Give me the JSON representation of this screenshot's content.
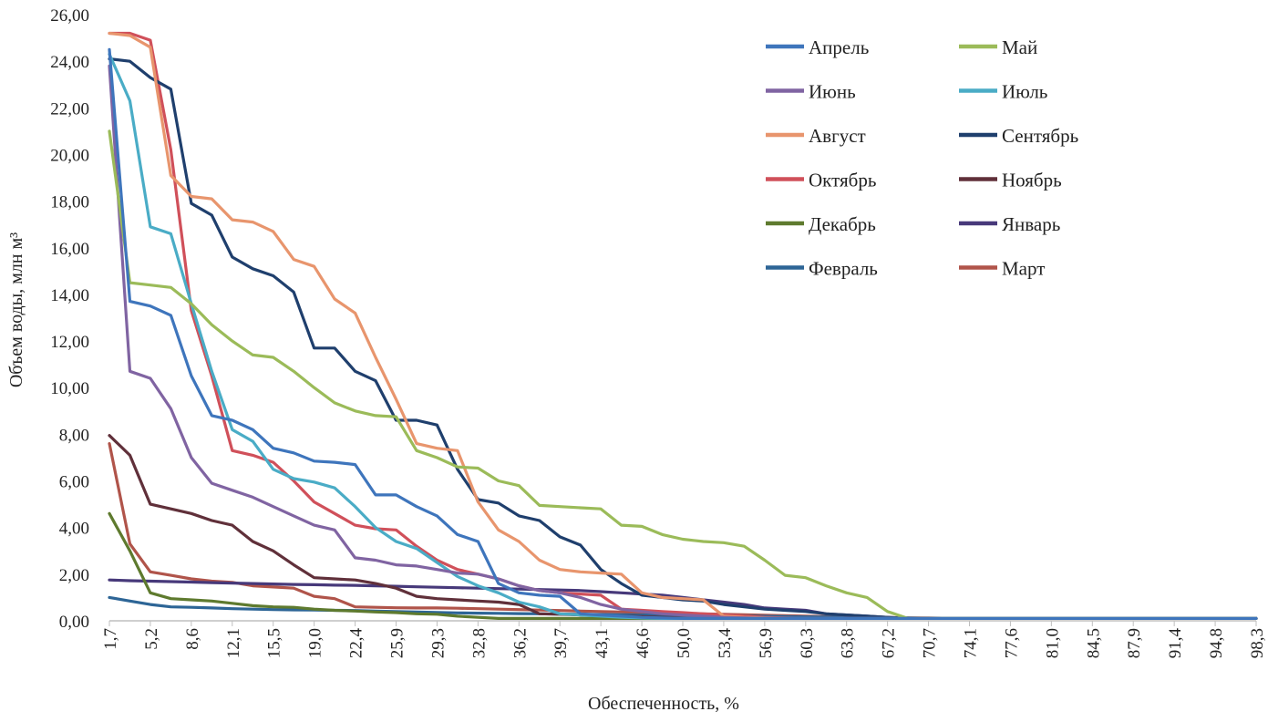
{
  "chart_data": {
    "type": "line",
    "title": "",
    "xlabel": "Обеспеченность, %",
    "ylabel": "Объем воды, млн м³",
    "ylim": [
      0,
      26
    ],
    "y_ticks": [
      "0,00",
      "2,00",
      "4,00",
      "6,00",
      "8,00",
      "10,00",
      "12,00",
      "14,00",
      "16,00",
      "18,00",
      "20,00",
      "22,00",
      "24,00",
      "26,00"
    ],
    "x_tick_labels": [
      "1,7",
      "5,2",
      "8,6",
      "12,1",
      "15,5",
      "19,0",
      "22,4",
      "25,9",
      "29,3",
      "32,8",
      "36,2",
      "39,7",
      "43,1",
      "46,6",
      "50,0",
      "53,4",
      "56,9",
      "60,3",
      "63,8",
      "67,2",
      "70,7",
      "74,1",
      "77,6",
      "81,0",
      "84,5",
      "87,9",
      "91,4",
      "94,8",
      "98,3"
    ],
    "x": [
      1.7,
      3.4,
      5.2,
      6.9,
      8.6,
      10.3,
      12.1,
      13.8,
      15.5,
      17.2,
      19.0,
      20.7,
      22.4,
      24.1,
      25.9,
      27.6,
      29.3,
      31.0,
      32.8,
      34.5,
      36.2,
      37.9,
      39.7,
      41.4,
      43.1,
      44.8,
      46.6,
      48.3,
      50.0,
      51.7,
      53.4,
      55.2,
      56.9,
      58.6,
      60.3,
      62.1,
      63.8,
      65.5,
      67.2,
      69.0,
      70.7,
      72.4,
      74.1,
      75.9,
      77.6,
      79.3,
      81.0,
      82.8,
      84.5,
      86.2,
      87.9,
      89.7,
      91.4,
      93.1,
      94.8,
      96.6,
      98.3
    ],
    "series": [
      {
        "name": "Апрель",
        "color": "#3e75bc",
        "values": [
          24.5,
          13.7,
          13.5,
          13.1,
          10.5,
          8.8,
          8.6,
          8.2,
          7.4,
          7.2,
          6.85,
          6.8,
          6.7,
          5.4,
          5.4,
          4.9,
          4.5,
          3.7,
          3.4,
          1.6,
          1.2,
          1.1,
          1.05,
          0.3,
          0.25,
          0.2,
          0.15,
          0.12,
          0.1,
          0.1,
          0.1,
          0.1,
          0.1,
          0.1,
          0.1,
          0.1,
          0.1,
          0.1,
          0.1,
          0.1,
          0.1,
          0.1,
          0.1,
          0.1,
          0.1,
          0.1,
          0.1,
          0.1,
          0.1,
          0.1,
          0.1,
          0.1,
          0.1,
          0.1,
          0.1,
          0.1,
          0.1
        ]
      },
      {
        "name": "Май",
        "color": "#9bbb59",
        "values": [
          21.0,
          14.5,
          14.4,
          14.3,
          13.6,
          12.7,
          12.0,
          11.4,
          11.3,
          10.7,
          10.0,
          9.35,
          9.0,
          8.8,
          8.75,
          7.3,
          7.0,
          6.6,
          6.55,
          6.0,
          5.8,
          4.95,
          4.9,
          4.85,
          4.8,
          4.1,
          4.05,
          3.7,
          3.5,
          3.4,
          3.35,
          3.2,
          2.6,
          1.95,
          1.85,
          1.5,
          1.2,
          1.0,
          0.4,
          0.1,
          0.1,
          0.1,
          0.1,
          0.1,
          0.1,
          0.1,
          0.1,
          0.1,
          0.1,
          0.1,
          0.1,
          0.1,
          0.1,
          0.1,
          0.1,
          0.1,
          0.1
        ]
      },
      {
        "name": "Июнь",
        "color": "#8064a2",
        "values": [
          23.8,
          10.7,
          10.4,
          9.1,
          7.0,
          5.9,
          5.6,
          5.3,
          4.9,
          4.5,
          4.1,
          3.9,
          2.7,
          2.6,
          2.4,
          2.35,
          2.2,
          2.05,
          2.0,
          1.8,
          1.5,
          1.3,
          1.2,
          1.0,
          0.7,
          0.5,
          0.4,
          0.3,
          0.25,
          0.2,
          0.15,
          0.12,
          0.1,
          0.1,
          0.1,
          0.1,
          0.1,
          0.1,
          0.1,
          0.1,
          0.1,
          0.1,
          0.1,
          0.1,
          0.1,
          0.1,
          0.1,
          0.1,
          0.1,
          0.1,
          0.1,
          0.1,
          0.1,
          0.1,
          0.1,
          0.1,
          0.1
        ]
      },
      {
        "name": "Июль",
        "color": "#4aacc6",
        "values": [
          24.3,
          22.3,
          16.9,
          16.6,
          13.6,
          10.7,
          8.2,
          7.7,
          6.5,
          6.1,
          5.95,
          5.7,
          4.9,
          4.0,
          3.4,
          3.1,
          2.5,
          1.9,
          1.5,
          1.2,
          0.8,
          0.6,
          0.3,
          0.25,
          0.2,
          0.15,
          0.12,
          0.1,
          0.1,
          0.1,
          0.1,
          0.1,
          0.1,
          0.1,
          0.1,
          0.1,
          0.1,
          0.1,
          0.1,
          0.1,
          0.1,
          0.1,
          0.1,
          0.1,
          0.1,
          0.1,
          0.1,
          0.1,
          0.1,
          0.1,
          0.1,
          0.1,
          0.1,
          0.1,
          0.1,
          0.1,
          0.1
        ]
      },
      {
        "name": "Август",
        "color": "#e8956d",
        "values": [
          25.2,
          25.1,
          24.6,
          19.1,
          18.2,
          18.1,
          17.2,
          17.1,
          16.7,
          15.5,
          15.2,
          13.8,
          13.2,
          11.3,
          9.5,
          7.6,
          7.4,
          7.3,
          5.1,
          3.9,
          3.4,
          2.6,
          2.2,
          2.1,
          2.05,
          2.0,
          1.2,
          1.0,
          0.95,
          0.9,
          0.2,
          0.15,
          0.12,
          0.1,
          0.1,
          0.1,
          0.1,
          0.1,
          0.1,
          0.1,
          0.1,
          0.1,
          0.1,
          0.1,
          0.1,
          0.1,
          0.1,
          0.1,
          0.1,
          0.1,
          0.1,
          0.1,
          0.1,
          0.1,
          0.1,
          0.1,
          0.1
        ]
      },
      {
        "name": "Сентябрь",
        "color": "#1f3f6d",
        "values": [
          24.1,
          24.0,
          23.3,
          22.8,
          17.9,
          17.4,
          15.6,
          15.1,
          14.8,
          14.1,
          11.7,
          11.7,
          10.7,
          10.3,
          8.6,
          8.6,
          8.4,
          6.5,
          5.2,
          5.05,
          4.5,
          4.3,
          3.6,
          3.25,
          2.2,
          1.6,
          1.1,
          1.0,
          0.9,
          0.85,
          0.7,
          0.6,
          0.5,
          0.45,
          0.4,
          0.3,
          0.25,
          0.2,
          0.15,
          0.1,
          0.1,
          0.1,
          0.1,
          0.1,
          0.1,
          0.1,
          0.1,
          0.1,
          0.1,
          0.1,
          0.1,
          0.1,
          0.1,
          0.1,
          0.1,
          0.1,
          0.1
        ]
      },
      {
        "name": "Октябрь",
        "color": "#d0505a",
        "values": [
          25.2,
          25.2,
          24.9,
          20.2,
          13.3,
          10.5,
          7.3,
          7.1,
          6.8,
          6.0,
          5.1,
          4.6,
          4.1,
          3.95,
          3.9,
          3.2,
          2.6,
          2.2,
          2.0,
          1.8,
          1.5,
          1.3,
          1.2,
          1.15,
          1.1,
          0.5,
          0.45,
          0.4,
          0.35,
          0.3,
          0.25,
          0.2,
          0.15,
          0.12,
          0.1,
          0.1,
          0.1,
          0.1,
          0.1,
          0.1,
          0.1,
          0.1,
          0.1,
          0.1,
          0.1,
          0.1,
          0.1,
          0.1,
          0.1,
          0.1,
          0.1,
          0.1,
          0.1,
          0.1,
          0.1,
          0.1,
          0.1
        ]
      },
      {
        "name": "Ноябрь",
        "color": "#60303a",
        "values": [
          7.95,
          7.1,
          5.0,
          4.8,
          4.6,
          4.3,
          4.1,
          3.4,
          3.0,
          2.4,
          1.85,
          1.8,
          1.75,
          1.6,
          1.4,
          1.05,
          0.95,
          0.9,
          0.85,
          0.8,
          0.7,
          0.3,
          0.28,
          0.25,
          0.22,
          0.2,
          0.18,
          0.15,
          0.12,
          0.1,
          0.1,
          0.1,
          0.1,
          0.1,
          0.1,
          0.1,
          0.1,
          0.1,
          0.1,
          0.1,
          0.1,
          0.1,
          0.1,
          0.1,
          0.1,
          0.1,
          0.1,
          0.1,
          0.1,
          0.1,
          0.1,
          0.1,
          0.1,
          0.1,
          0.1,
          0.1,
          0.1
        ]
      },
      {
        "name": "Декабрь",
        "color": "#5e7a2e",
        "values": [
          4.6,
          3.0,
          1.2,
          0.95,
          0.9,
          0.85,
          0.75,
          0.65,
          0.6,
          0.58,
          0.5,
          0.45,
          0.42,
          0.38,
          0.35,
          0.3,
          0.28,
          0.2,
          0.15,
          0.1,
          0.1,
          0.1,
          0.1,
          0.1,
          0.1,
          0.1,
          0.1,
          0.1,
          0.1,
          0.1,
          0.1,
          0.1,
          0.1,
          0.1,
          0.1,
          0.1,
          0.1,
          0.1,
          0.1,
          0.1,
          0.1,
          0.1,
          0.1,
          0.1,
          0.1,
          0.1,
          0.1,
          0.1,
          0.1,
          0.1,
          0.1,
          0.1,
          0.1,
          0.1,
          0.1,
          0.1,
          0.1
        ]
      },
      {
        "name": "Январь",
        "color": "#47397a",
        "values": [
          1.75,
          1.72,
          1.7,
          1.68,
          1.66,
          1.64,
          1.62,
          1.6,
          1.58,
          1.56,
          1.55,
          1.53,
          1.52,
          1.5,
          1.48,
          1.46,
          1.44,
          1.42,
          1.4,
          1.38,
          1.36,
          1.34,
          1.32,
          1.3,
          1.25,
          1.2,
          1.15,
          1.1,
          1.0,
          0.9,
          0.8,
          0.7,
          0.55,
          0.5,
          0.45,
          0.3,
          0.25,
          0.2,
          0.15,
          0.1,
          0.1,
          0.1,
          0.1,
          0.1,
          0.1,
          0.1,
          0.1,
          0.1,
          0.1,
          0.1,
          0.1,
          0.1,
          0.1,
          0.1,
          0.1,
          0.1,
          0.1
        ]
      },
      {
        "name": "Февраль",
        "color": "#2d6596",
        "values": [
          1.0,
          0.85,
          0.7,
          0.6,
          0.58,
          0.55,
          0.52,
          0.5,
          0.48,
          0.47,
          0.46,
          0.45,
          0.44,
          0.42,
          0.4,
          0.38,
          0.36,
          0.34,
          0.33,
          0.32,
          0.31,
          0.3,
          0.29,
          0.28,
          0.27,
          0.26,
          0.25,
          0.24,
          0.23,
          0.22,
          0.21,
          0.2,
          0.19,
          0.18,
          0.17,
          0.16,
          0.15,
          0.14,
          0.13,
          0.12,
          0.11,
          0.1,
          0.1,
          0.1,
          0.1,
          0.1,
          0.1,
          0.1,
          0.1,
          0.1,
          0.1,
          0.1,
          0.1,
          0.1,
          0.1,
          0.1,
          0.1
        ]
      },
      {
        "name": "Март",
        "color": "#b0544a",
        "values": [
          7.6,
          3.3,
          2.1,
          1.95,
          1.8,
          1.7,
          1.65,
          1.5,
          1.45,
          1.4,
          1.05,
          0.95,
          0.6,
          0.58,
          0.56,
          0.55,
          0.55,
          0.54,
          0.52,
          0.5,
          0.48,
          0.46,
          0.44,
          0.42,
          0.4,
          0.38,
          0.36,
          0.34,
          0.32,
          0.3,
          0.28,
          0.26,
          0.24,
          0.22,
          0.2,
          0.18,
          0.16,
          0.15,
          0.14,
          0.13,
          0.12,
          0.11,
          0.1,
          0.1,
          0.1,
          0.1,
          0.1,
          0.1,
          0.1,
          0.1,
          0.1,
          0.1,
          0.1,
          0.1,
          0.1,
          0.1,
          0.1
        ]
      }
    ]
  }
}
